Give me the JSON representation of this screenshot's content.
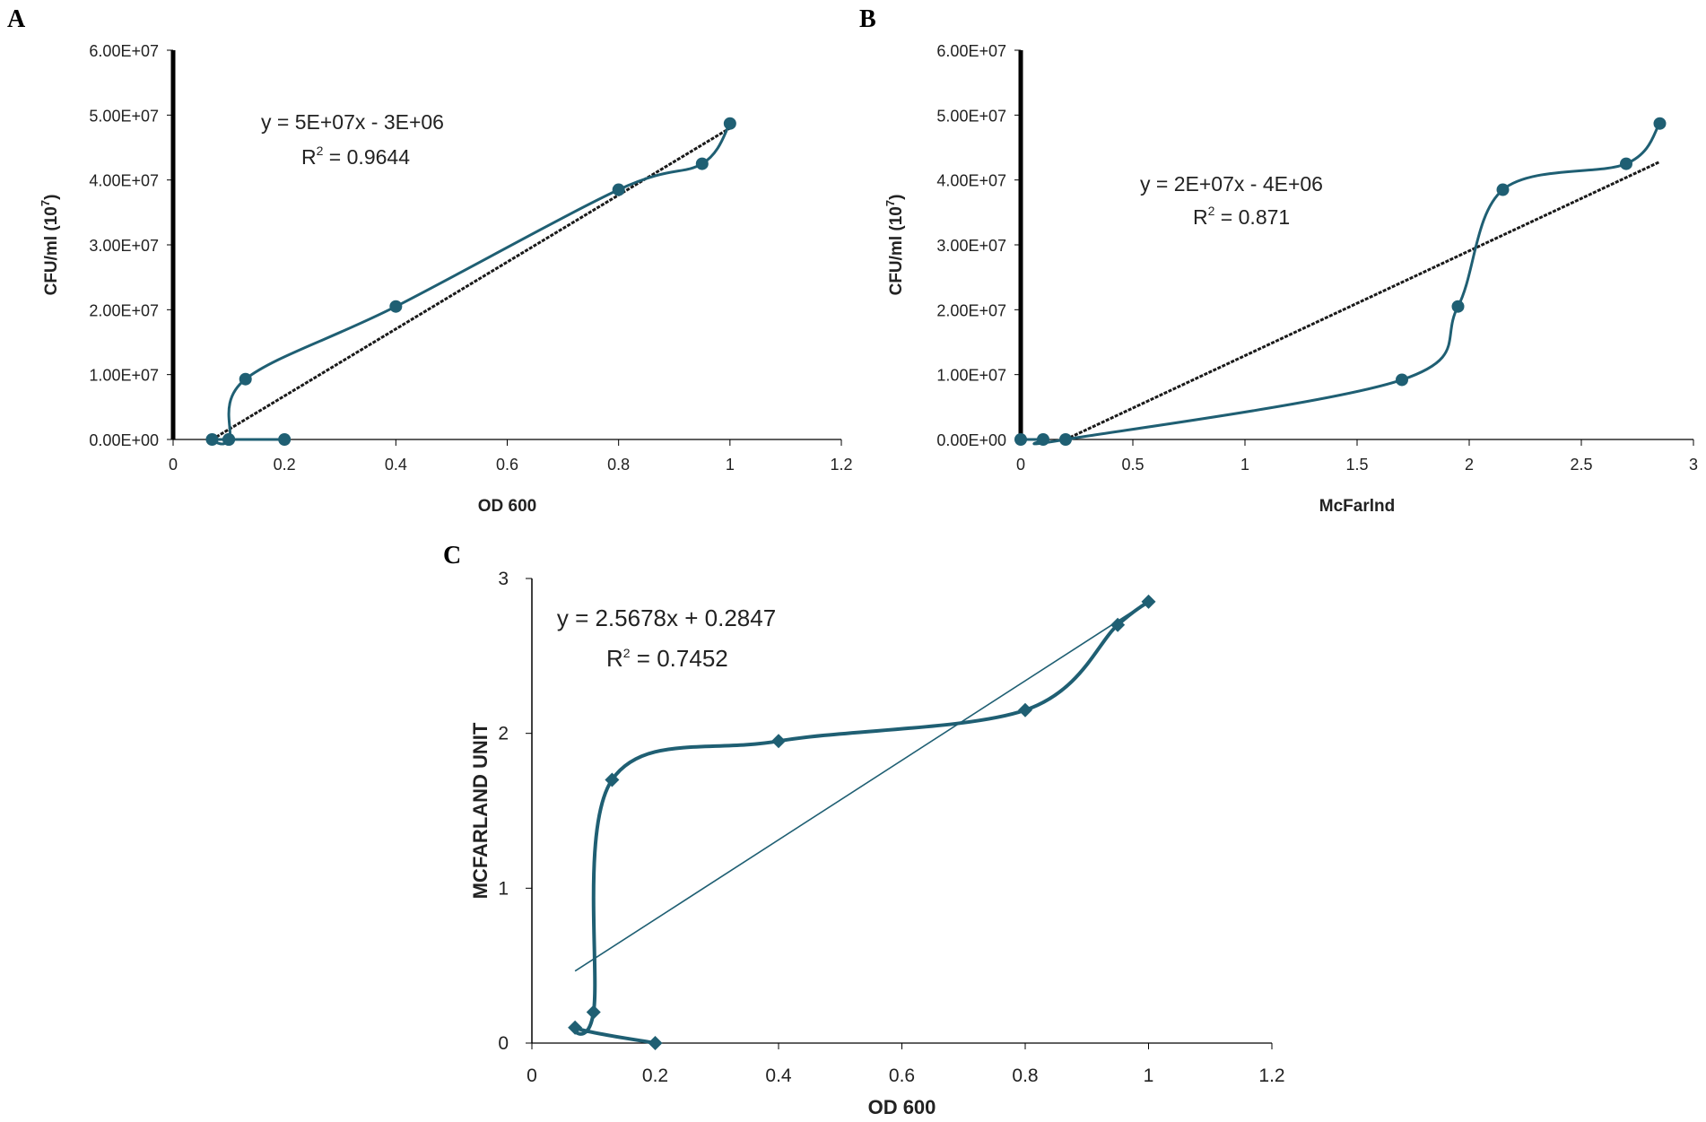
{
  "colors": {
    "series": "#1f5f73",
    "trend": "#1a1a1a",
    "axis": "#000000",
    "text": "#222222"
  },
  "chart_data": [
    {
      "panel": "A",
      "type": "scatter",
      "xlabel": "OD 600",
      "ylabel": "CFU/ml (10",
      "ylabel_sup": "7",
      "ylabel_close": ")",
      "xlim": [
        0,
        1.2
      ],
      "ylim": [
        0,
        60000000
      ],
      "x_ticks": [
        "0",
        "0.2",
        "0.4",
        "0.6",
        "0.8",
        "1",
        "1.2"
      ],
      "y_ticks": [
        "0.00E+00",
        "1.00E+07",
        "2.00E+07",
        "3.00E+07",
        "4.00E+07",
        "5.00E+07",
        "6.00E+07"
      ],
      "series": [
        {
          "name": "CFU",
          "marker": "circle",
          "smooth": true,
          "x": [
            0.2,
            0.1,
            0.07,
            0.1,
            0.13,
            0.4,
            0.8,
            0.95,
            1.0
          ],
          "y": [
            0,
            0,
            0,
            0,
            9300000,
            20500000,
            38500000,
            42500000,
            48700000
          ]
        }
      ],
      "trendline": {
        "x": [
          0.07,
          1.0
        ],
        "y": [
          0,
          48000000
        ]
      },
      "equation": "y = 5E+07x - 3E+06",
      "r2_label": "R",
      "r2_sup": "2",
      "r2_value": " = 0.9644"
    },
    {
      "panel": "B",
      "type": "scatter",
      "xlabel": "McFarlnd",
      "ylabel": "CFU/ml (10",
      "ylabel_sup": "7",
      "ylabel_close": ")",
      "xlim": [
        0,
        3
      ],
      "ylim": [
        0,
        60000000
      ],
      "x_ticks": [
        "0",
        "0.5",
        "1",
        "1.5",
        "2",
        "2.5",
        "3"
      ],
      "y_ticks": [
        "0.00E+00",
        "1.00E+07",
        "2.00E+07",
        "3.00E+07",
        "4.00E+07",
        "5.00E+07",
        "6.00E+07"
      ],
      "series": [
        {
          "name": "CFU",
          "marker": "circle",
          "smooth": true,
          "x": [
            0,
            0.1,
            0.2,
            1.7,
            1.95,
            2.15,
            2.7,
            2.85
          ],
          "y": [
            0,
            0,
            0,
            9200000,
            20500000,
            38500000,
            42500000,
            48700000
          ]
        }
      ],
      "trendline": {
        "x": [
          0.2,
          2.85
        ],
        "y": [
          0,
          42800000
        ]
      },
      "equation": "y = 2E+07x - 4E+06",
      "r2_label": "R",
      "r2_sup": "2",
      "r2_value": " = 0.871"
    },
    {
      "panel": "C",
      "type": "scatter",
      "xlabel": "OD 600",
      "ylabel": "MCFARLAND UNIT",
      "xlim": [
        0,
        1.2
      ],
      "ylim": [
        0,
        3
      ],
      "x_ticks": [
        "0",
        "0.2",
        "0.4",
        "0.6",
        "0.8",
        "1",
        "1.2"
      ],
      "y_ticks": [
        "0",
        "1",
        "2",
        "3"
      ],
      "series": [
        {
          "name": "McFarland",
          "marker": "diamond",
          "smooth": true,
          "x": [
            0.2,
            0.07,
            0.1,
            0.13,
            0.4,
            0.8,
            0.95,
            1.0
          ],
          "y": [
            0,
            0.1,
            0.2,
            1.7,
            1.95,
            2.15,
            2.7,
            2.85
          ]
        }
      ],
      "trendline": {
        "x": [
          0.07,
          1.0
        ],
        "y": [
          0.465,
          2.853
        ]
      },
      "equation": "y = 2.5678x + 0.2847",
      "r2_label": "R",
      "r2_sup": "2",
      "r2_value": " = 0.7452"
    }
  ]
}
